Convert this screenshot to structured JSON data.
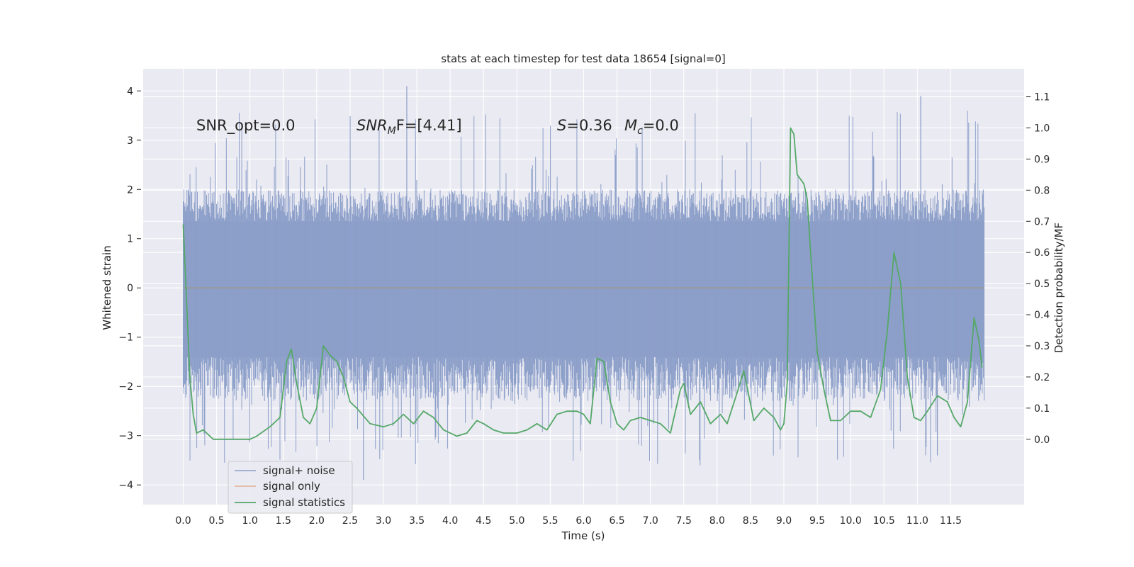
{
  "chart_data": {
    "type": "line",
    "title": "stats at each timestep for test data 18654 [signal=0]",
    "xlabel": "Time (s)",
    "ylabel": "Whitened strain",
    "y2label": "Detection probability/MF",
    "xlim": [
      -0.6,
      12.6
    ],
    "ylim": [
      -4.4,
      4.45
    ],
    "y2lim": [
      -0.21,
      1.19
    ],
    "x_ticks": [
      "0.0",
      "0.5",
      "1.0",
      "1.5",
      "2.0",
      "2.5",
      "3.0",
      "3.5",
      "4.0",
      "4.5",
      "5.0",
      "5.5",
      "6.0",
      "6.5",
      "7.0",
      "7.5",
      "8.0",
      "8.5",
      "9.0",
      "9.5",
      "10.0",
      "10.5",
      "11.0",
      "11.5"
    ],
    "y_ticks": [
      "4",
      "3",
      "2",
      "1",
      "0",
      "−1",
      "−2",
      "−3",
      "−4"
    ],
    "y2_ticks": [
      "1.1",
      "1.0",
      "0.9",
      "0.8",
      "0.7",
      "0.6",
      "0.5",
      "0.4",
      "0.3",
      "0.2",
      "0.1",
      "0.0"
    ],
    "grid": true,
    "legend_position": "lower-left",
    "legend": [
      "signal+ noise",
      "signal only",
      "signal statistics"
    ],
    "annotations": {
      "snr_opt": "SNR_opt=0.0",
      "snr_mf_main": "SNR",
      "snr_mf_sub": "M",
      "snr_mf_tail": "F=[4.41]",
      "s_label": "S",
      "s_value": "=0.36",
      "mc_main": "M",
      "mc_sub": "c",
      "mc_value": "=0.0"
    },
    "colors": {
      "noise": "#8c9fc9",
      "signal": "#dd8452",
      "statistics": "#55a868",
      "background": "#eaeaf2",
      "grid": "#ffffff"
    },
    "noise_envelope": {
      "x_range": [
        0.0,
        12.0
      ],
      "core_band": [
        -1.4,
        1.35
      ],
      "typical_band": [
        -2.3,
        2.0
      ],
      "max_value": 4.1,
      "min_value": -3.9
    },
    "signal_only": {
      "x": [
        0.0,
        12.0
      ],
      "y": [
        0.0,
        0.0
      ]
    },
    "series": [
      {
        "name": "signal statistics",
        "x": [
          0.0,
          0.1,
          0.15,
          0.2,
          0.3,
          0.45,
          0.6,
          0.8,
          1.0,
          1.1,
          1.3,
          1.45,
          1.55,
          1.62,
          1.7,
          1.8,
          1.9,
          2.0,
          2.1,
          2.2,
          2.3,
          2.4,
          2.5,
          2.6,
          2.8,
          3.0,
          3.15,
          3.3,
          3.45,
          3.6,
          3.75,
          3.9,
          4.1,
          4.25,
          4.4,
          4.5,
          4.65,
          4.8,
          5.0,
          5.15,
          5.3,
          5.45,
          5.6,
          5.75,
          5.9,
          6.0,
          6.1,
          6.2,
          6.3,
          6.4,
          6.5,
          6.6,
          6.7,
          6.85,
          7.0,
          7.15,
          7.3,
          7.45,
          7.5,
          7.6,
          7.75,
          7.9,
          8.05,
          8.15,
          8.3,
          8.4,
          8.55,
          8.7,
          8.85,
          8.95,
          9.0,
          9.05,
          9.1,
          9.15,
          9.2,
          9.3,
          9.35,
          9.4,
          9.5,
          9.6,
          9.7,
          9.85,
          10.0,
          10.15,
          10.3,
          10.45,
          10.55,
          10.65,
          10.75,
          10.85,
          10.95,
          11.05,
          11.15,
          11.3,
          11.45,
          11.55,
          11.65,
          11.75,
          11.85,
          11.92,
          11.97
        ],
        "y": [
          0.69,
          0.2,
          0.08,
          0.02,
          0.03,
          0.0,
          0.0,
          0.0,
          0.0,
          0.01,
          0.04,
          0.07,
          0.25,
          0.29,
          0.18,
          0.07,
          0.05,
          0.1,
          0.3,
          0.27,
          0.25,
          0.2,
          0.12,
          0.1,
          0.05,
          0.04,
          0.05,
          0.08,
          0.05,
          0.09,
          0.07,
          0.03,
          0.01,
          0.02,
          0.06,
          0.05,
          0.03,
          0.02,
          0.02,
          0.03,
          0.05,
          0.03,
          0.08,
          0.09,
          0.09,
          0.08,
          0.05,
          0.26,
          0.25,
          0.12,
          0.05,
          0.03,
          0.06,
          0.07,
          0.06,
          0.05,
          0.02,
          0.16,
          0.18,
          0.08,
          0.12,
          0.05,
          0.08,
          0.05,
          0.15,
          0.22,
          0.06,
          0.1,
          0.07,
          0.03,
          0.05,
          0.18,
          1.0,
          0.98,
          0.85,
          0.82,
          0.77,
          0.6,
          0.28,
          0.16,
          0.06,
          0.06,
          0.09,
          0.09,
          0.07,
          0.16,
          0.35,
          0.6,
          0.5,
          0.2,
          0.07,
          0.06,
          0.09,
          0.14,
          0.12,
          0.07,
          0.04,
          0.12,
          0.39,
          0.32,
          0.23
        ]
      }
    ]
  }
}
